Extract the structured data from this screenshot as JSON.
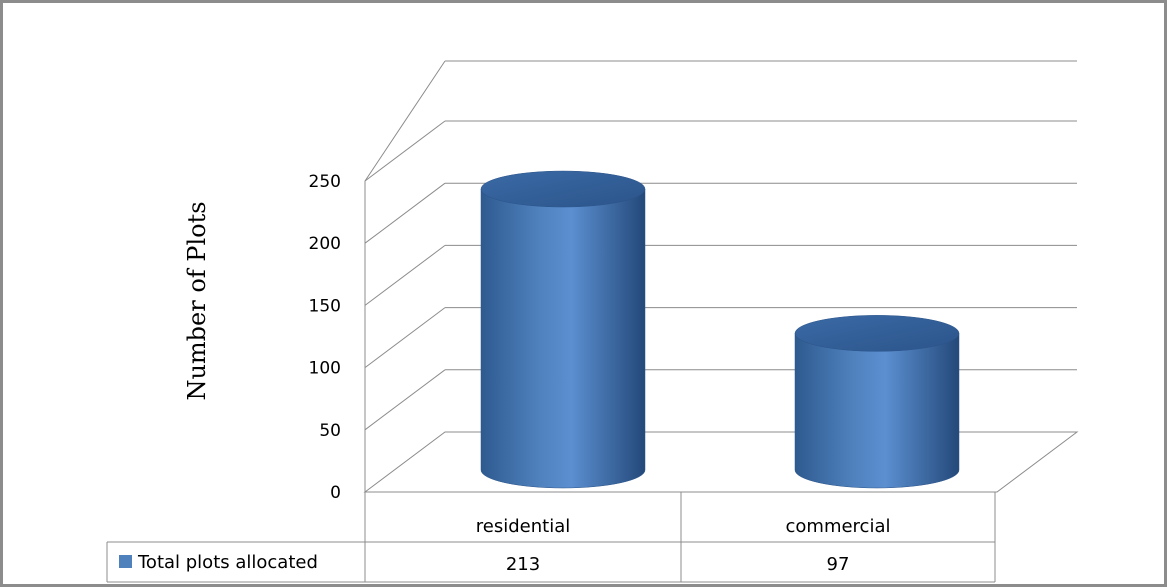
{
  "chart_data": {
    "type": "bar",
    "style": "3d-cylinder",
    "categories": [
      "residential",
      "commercial"
    ],
    "series": [
      {
        "name": "Total plots allocated",
        "values": [
          213,
          97
        ],
        "color": "#4f81bd"
      }
    ],
    "ylabel": "Number of Plots",
    "ylim": [
      0,
      250
    ],
    "yticks": [
      0,
      50,
      100,
      150,
      200,
      250
    ],
    "grid": true,
    "data_table": {
      "rows": [
        {
          "label": "Total plots allocated",
          "cells": [
            "213",
            "97"
          ]
        }
      ]
    }
  }
}
